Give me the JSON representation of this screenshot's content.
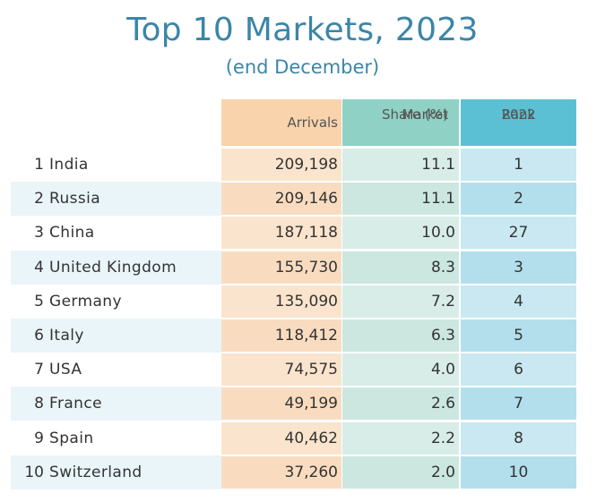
{
  "title": "Top 10 Markets, 2023",
  "subtitle": "(end December)",
  "headers": {
    "arrivals": "Arrivals",
    "share_line1": "Market",
    "share_line2": "Share (%)",
    "rank_line1": "Rank",
    "rank_line2": "2022"
  },
  "colors": {
    "title": "#3a86a8",
    "arrivals_header": "#f8d3ab",
    "share_header": "#8fd1c4",
    "rank_header": "#5cc0d4"
  },
  "rows": [
    {
      "num": "1",
      "country": "India",
      "arrivals": "209,198",
      "share": "11.1",
      "rank": "1"
    },
    {
      "num": "2",
      "country": "Russia",
      "arrivals": "209,146",
      "share": "11.1",
      "rank": "2"
    },
    {
      "num": "3",
      "country": "China",
      "arrivals": "187,118",
      "share": "10.0",
      "rank": "27"
    },
    {
      "num": "4",
      "country": "United Kingdom",
      "arrivals": "155,730",
      "share": "8.3",
      "rank": "3"
    },
    {
      "num": "5",
      "country": "Germany",
      "arrivals": "135,090",
      "share": "7.2",
      "rank": "4"
    },
    {
      "num": "6",
      "country": "Italy",
      "arrivals": "118,412",
      "share": "6.3",
      "rank": "5"
    },
    {
      "num": "7",
      "country": "USA",
      "arrivals": "74,575",
      "share": "4.0",
      "rank": "6"
    },
    {
      "num": "8",
      "country": "France",
      "arrivals": "49,199",
      "share": "2.6",
      "rank": "7"
    },
    {
      "num": "9",
      "country": "Spain",
      "arrivals": "40,462",
      "share": "2.2",
      "rank": "8"
    },
    {
      "num": "10",
      "country": "Switzerland",
      "arrivals": "37,260",
      "share": "2.0",
      "rank": "10"
    }
  ]
}
